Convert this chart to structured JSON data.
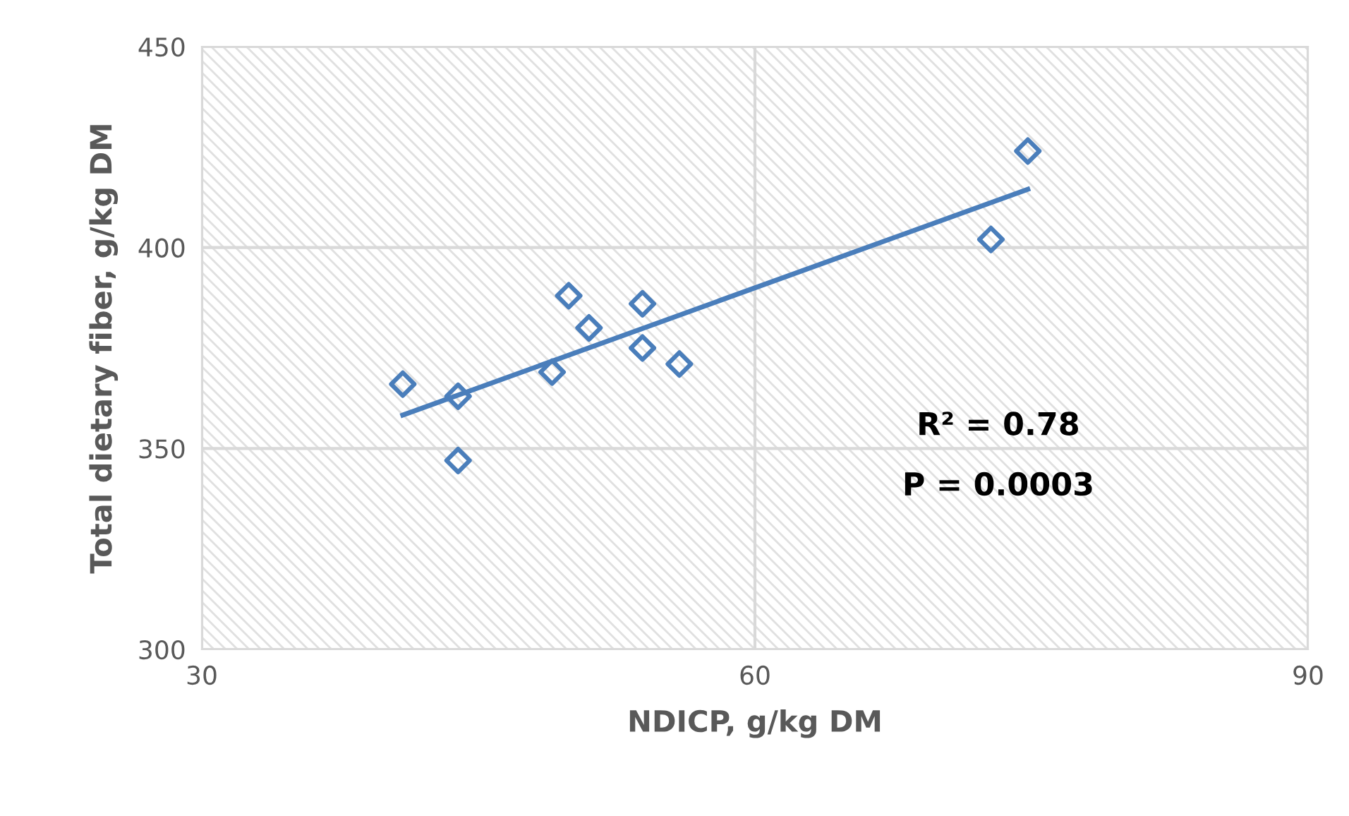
{
  "chart_data": {
    "type": "scatter",
    "xlabel": "NDICP, g/kg DM",
    "ylabel": "Total dietary fiber, g/kg DM",
    "x": [
      40.9,
      43.9,
      43.9,
      49.0,
      49.9,
      51.0,
      53.9,
      53.9,
      55.9,
      72.8,
      74.8
    ],
    "series": [
      {
        "color": "#4a7ebb",
        "marker": "diamond",
        "values": [
          366,
          363,
          347,
          369,
          388,
          380,
          386,
          375,
          371,
          402,
          424
        ]
      },
      {
        "type": "line",
        "color": "#4a7ebb",
        "marker": "none",
        "x": [
          40.9,
          74.8
        ],
        "values": [
          358.3,
          414.5
        ]
      }
    ],
    "xlim": [
      30,
      90
    ],
    "xticks": [
      30,
      60,
      90
    ],
    "ylim": [
      300,
      450
    ],
    "yticks": [
      300,
      350,
      400,
      450
    ],
    "grid": true,
    "annotations": [
      "R² = 0.78",
      "P = 0.0003"
    ]
  }
}
